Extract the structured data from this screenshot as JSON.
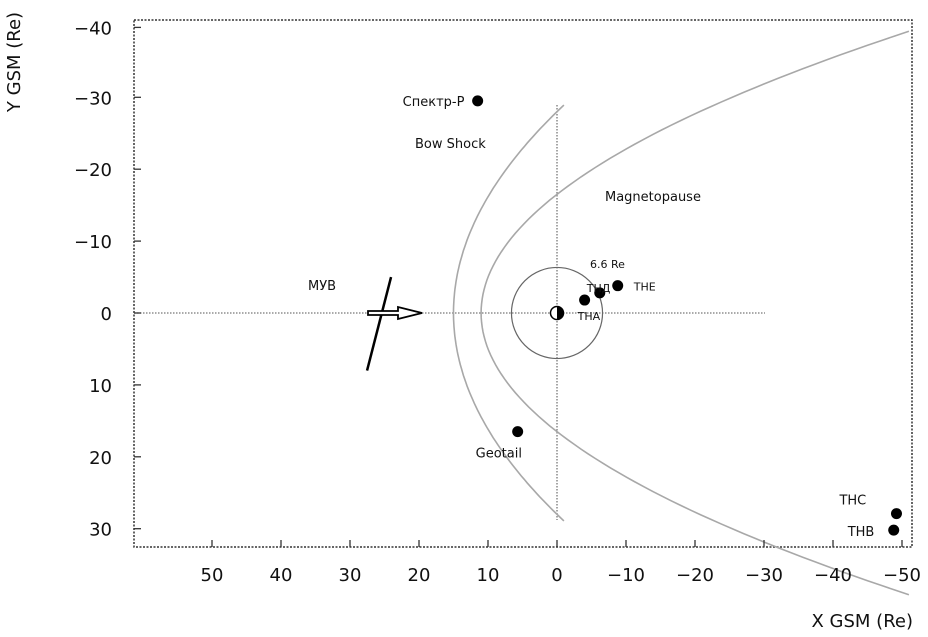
{
  "chart_data": {
    "type": "scatter",
    "xlabel": "X GSM (Re)",
    "ylabel": "Y GSM (Re)",
    "xlim": [
      60,
      -52
    ],
    "ylim": [
      -40,
      33
    ],
    "x_ticks": [
      {
        "value": 50,
        "label": "50"
      },
      {
        "value": 40,
        "label": "40"
      },
      {
        "value": 30,
        "label": "30"
      },
      {
        "value": 20,
        "label": "20"
      },
      {
        "value": 10,
        "label": "10"
      },
      {
        "value": 0,
        "label": "0"
      },
      {
        "value": -10,
        "label": "−10"
      },
      {
        "value": -20,
        "label": "−20"
      },
      {
        "value": -30,
        "label": "−30"
      },
      {
        "value": -40,
        "label": "−40"
      },
      {
        "value": -50,
        "label": "−50"
      }
    ],
    "y_ticks": [
      {
        "value": -40,
        "label": "−40"
      },
      {
        "value": -30,
        "label": "−30"
      },
      {
        "value": -20,
        "label": "−20"
      },
      {
        "value": -10,
        "label": "−10"
      },
      {
        "value": 0,
        "label": "0"
      },
      {
        "value": 10,
        "label": "10"
      },
      {
        "value": 20,
        "label": "20"
      },
      {
        "value": 30,
        "label": "30"
      }
    ],
    "points": [
      {
        "name": "Спектр-Р",
        "x": 11.5,
        "y": -29.5
      },
      {
        "name": "Geotail",
        "x": 5.7,
        "y": 16.5
      },
      {
        "name": "THA",
        "x": -4.0,
        "y": -1.8
      },
      {
        "name": "THД",
        "x": -6.2,
        "y": -2.8
      },
      {
        "name": "THE",
        "x": -8.8,
        "y": -3.8
      },
      {
        "name": "THC",
        "x": -49.2,
        "y": 27.9
      },
      {
        "name": "THB",
        "x": -48.8,
        "y": 30.2
      }
    ],
    "curves": [
      {
        "name": "Bow Shock",
        "nose_x": 15,
        "half_width_at_0": 28,
        "x_range": [
          15,
          -1
        ]
      },
      {
        "name": "Magnetopause",
        "nose_x": 11,
        "half_width_at_0": 16.5,
        "x_range": [
          11,
          -51
        ]
      }
    ],
    "circle": {
      "label": "6.6 Re",
      "radius_re": 6.6,
      "center": [
        0,
        0
      ]
    },
    "shock_front": {
      "label": "МУВ",
      "x": 25.5,
      "y_range": [
        -5,
        5.5
      ]
    },
    "earth": {
      "x": 0,
      "y": 0
    }
  },
  "colors": {
    "curve": "#a8a8a8",
    "points": "#000000",
    "axes": "#333333"
  }
}
